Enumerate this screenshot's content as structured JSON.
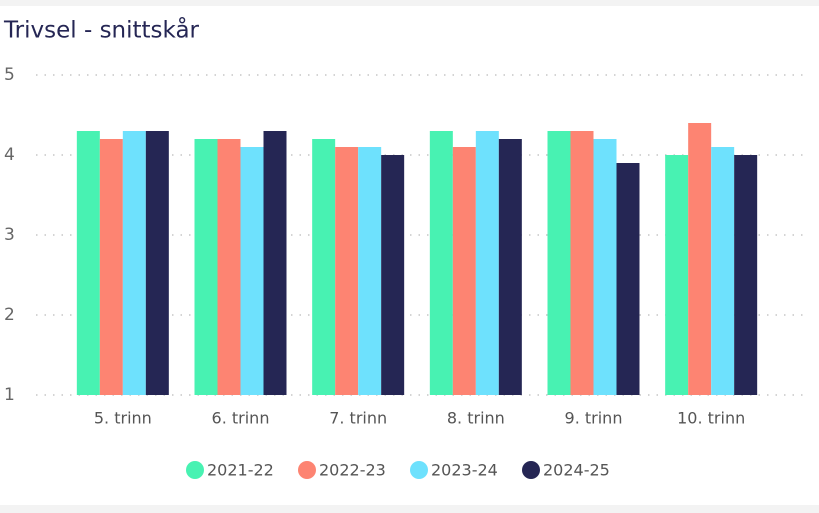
{
  "chart_data": {
    "type": "bar",
    "title": "Trivsel - snittskår",
    "categories": [
      "5. trinn",
      "6. trinn",
      "7. trinn",
      "8. trinn",
      "9. trinn",
      "10. trinn"
    ],
    "series": [
      {
        "name": "2021-22",
        "color": "#48f2b2",
        "values": [
          4.3,
          4.2,
          4.2,
          4.3,
          4.3,
          4.0
        ]
      },
      {
        "name": "2022-23",
        "color": "#fd8472",
        "values": [
          4.2,
          4.2,
          4.1,
          4.1,
          4.3,
          4.4
        ]
      },
      {
        "name": "2023-24",
        "color": "#6ee1fd",
        "values": [
          4.3,
          4.1,
          4.1,
          4.3,
          4.2,
          4.1
        ]
      },
      {
        "name": "2024-25",
        "color": "#252654",
        "values": [
          4.3,
          4.3,
          4.0,
          4.2,
          3.9,
          4.0
        ]
      }
    ],
    "ylim": [
      1,
      5
    ],
    "yticks": [
      1,
      2,
      3,
      4,
      5
    ],
    "grid": true,
    "legend": "bottom"
  }
}
